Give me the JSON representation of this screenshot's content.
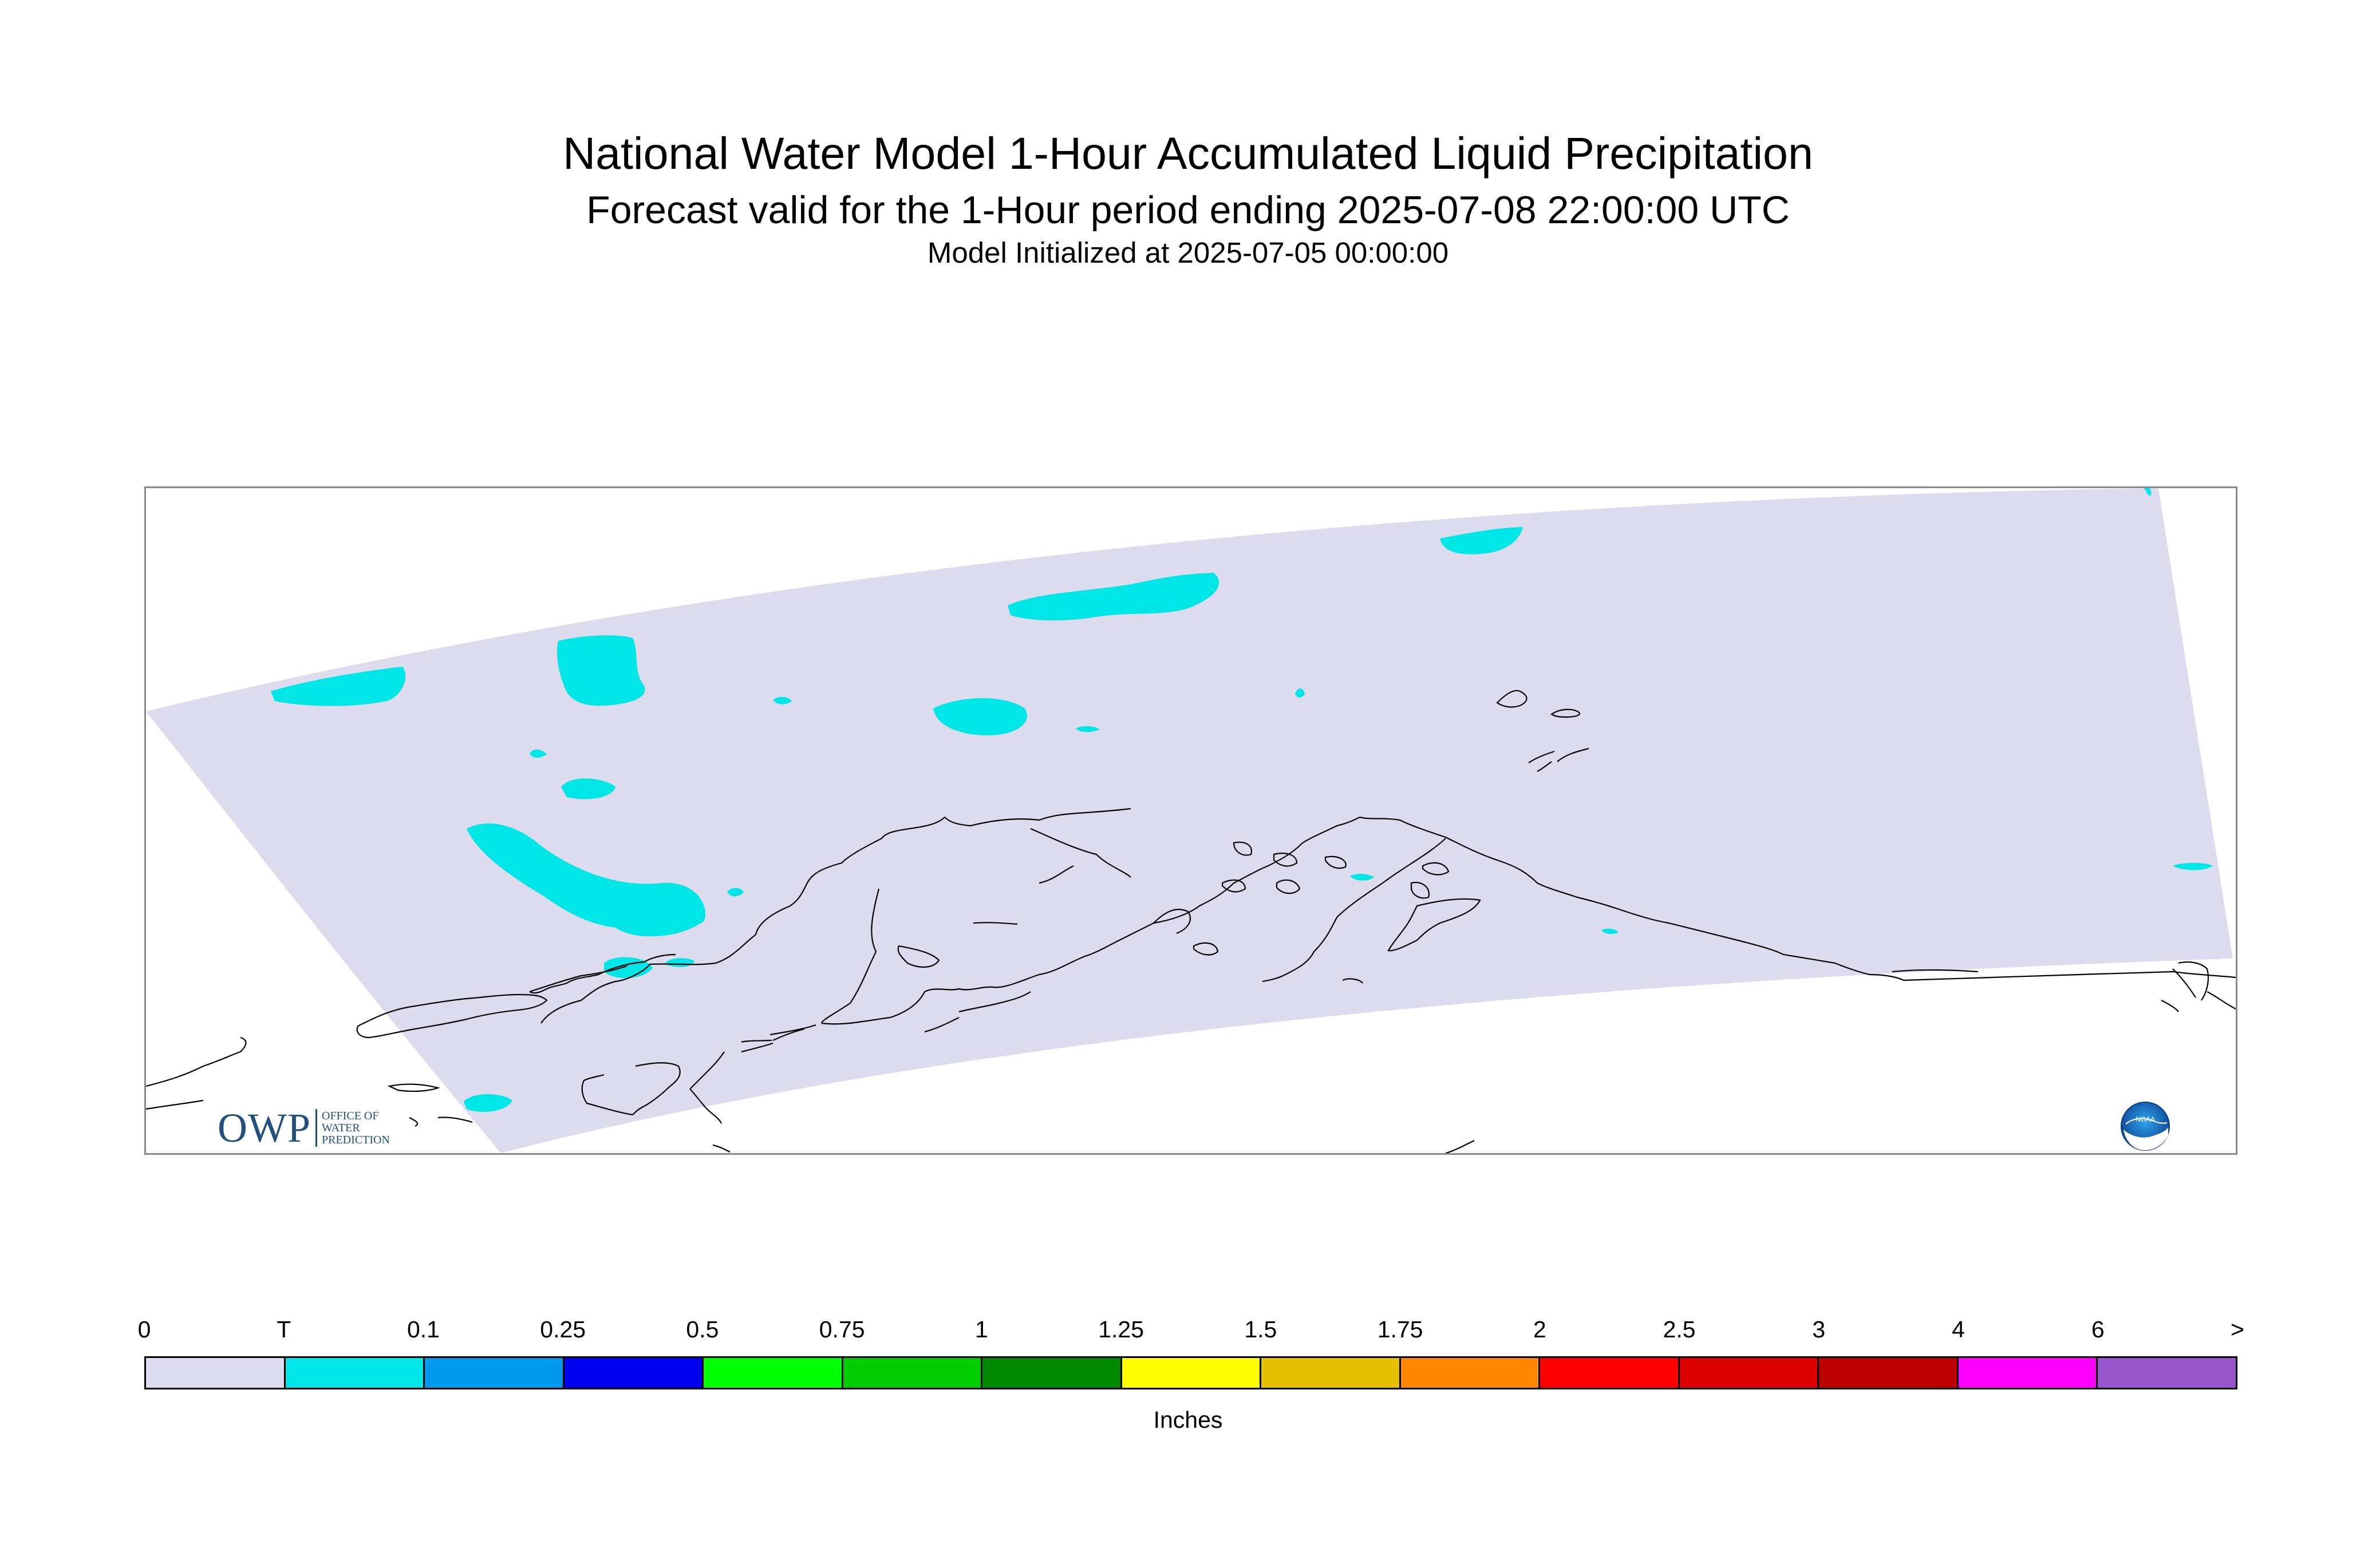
{
  "header": {
    "title": "National Water Model 1-Hour Accumulated Liquid Precipitation",
    "subtitle": "Forecast valid for the 1-Hour period ending 2025-07-08 22:00:00 UTC",
    "init": "Model Initialized at 2025-07-05 00:00:00"
  },
  "map": {
    "region": "Alaska",
    "domain_color": "#dcdcee",
    "precip_color": "#00e5e5",
    "coastline_color": "#000000"
  },
  "logos": {
    "owp": {
      "letters": "OWP",
      "line1": "Office of",
      "line2": "Water",
      "line3": "Prediction"
    },
    "noaa": {
      "text": "NOAA"
    }
  },
  "legend": {
    "unit": "Inches",
    "ticks": [
      "0",
      "T",
      "0.1",
      "0.25",
      "0.5",
      "0.75",
      "1",
      "1.25",
      "1.5",
      "1.75",
      "2",
      "2.5",
      "3",
      "4",
      "6",
      ">"
    ],
    "colors": [
      "#dcdcee",
      "#00e5e5",
      "#0099ee",
      "#0000ee",
      "#00ff00",
      "#00cc00",
      "#008800",
      "#ffff00",
      "#e5c000",
      "#ff8800",
      "#ff0000",
      "#dd0000",
      "#bb0000",
      "#ff00ff",
      "#9955cc"
    ]
  }
}
